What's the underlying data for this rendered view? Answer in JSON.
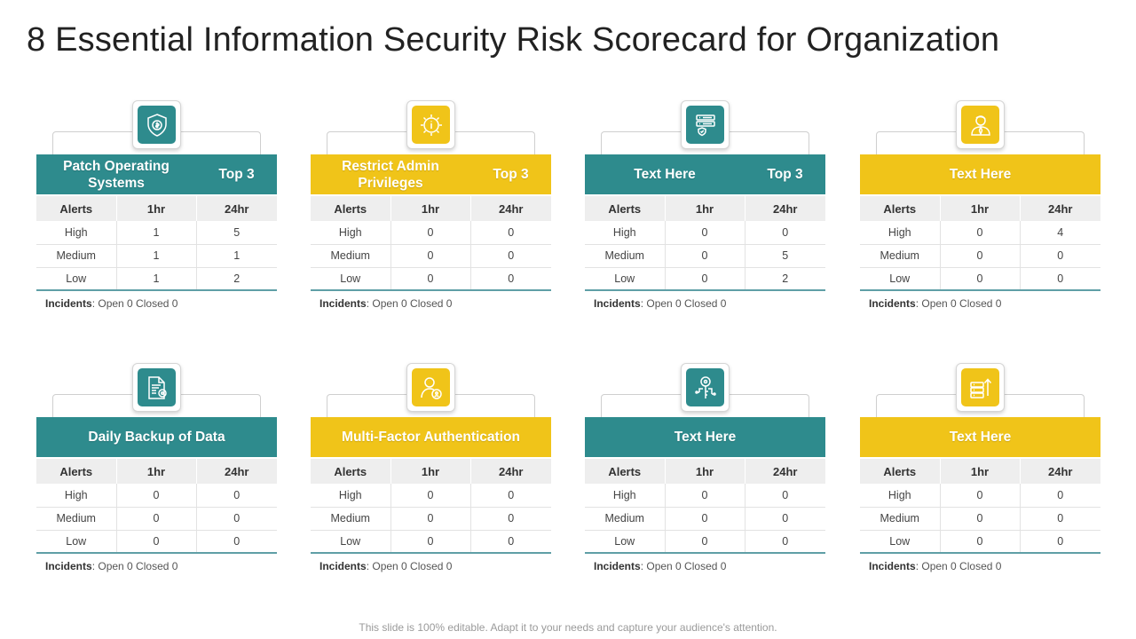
{
  "title": "8 Essential Information Security Risk Scorecard for Organization",
  "columns": [
    "Alerts",
    "1hr",
    "24hr"
  ],
  "incidents_label": "Incidents",
  "cards": [
    {
      "title": "Patch Operating Systems",
      "badge": "Top 3",
      "color": "teal",
      "icon": "shield-dollar-icon",
      "rows": [
        [
          "High",
          "1",
          "5"
        ],
        [
          "Medium",
          "1",
          "1"
        ],
        [
          "Low",
          "1",
          "2"
        ]
      ],
      "incidents": "Open 0 Closed 0"
    },
    {
      "title": "Restrict Admin Privileges",
      "badge": "Top 3",
      "color": "yellow",
      "icon": "gear-info-icon",
      "rows": [
        [
          "High",
          "0",
          "0"
        ],
        [
          "Medium",
          "0",
          "0"
        ],
        [
          "Low",
          "0",
          "0"
        ]
      ],
      "incidents": "Open 0 Closed 0"
    },
    {
      "title": "Text Here",
      "badge": "Top 3",
      "color": "teal",
      "icon": "server-shield-icon",
      "rows": [
        [
          "High",
          "0",
          "0"
        ],
        [
          "Medium",
          "0",
          "5"
        ],
        [
          "Low",
          "0",
          "2"
        ]
      ],
      "incidents": "Open 0 Closed 0"
    },
    {
      "title": "Text Here",
      "badge": "",
      "color": "yellow",
      "icon": "user-icon",
      "rows": [
        [
          "High",
          "0",
          "4"
        ],
        [
          "Medium",
          "0",
          "0"
        ],
        [
          "Low",
          "0",
          "0"
        ]
      ],
      "incidents": "Open 0 Closed 0"
    },
    {
      "title": "Daily Backup of Data",
      "badge": "",
      "color": "teal",
      "icon": "document-settings-icon",
      "rows": [
        [
          "High",
          "0",
          "0"
        ],
        [
          "Medium",
          "0",
          "0"
        ],
        [
          "Low",
          "0",
          "0"
        ]
      ],
      "incidents": "Open 0 Closed 0"
    },
    {
      "title": "Multi-Factor Authentication",
      "badge": "",
      "color": "yellow",
      "icon": "user-lock-icon",
      "rows": [
        [
          "High",
          "0",
          "0"
        ],
        [
          "Medium",
          "0",
          "0"
        ],
        [
          "Low",
          "0",
          "0"
        ]
      ],
      "incidents": "Open 0 Closed 0"
    },
    {
      "title": "Text Here",
      "badge": "",
      "color": "teal",
      "icon": "key-circuit-icon",
      "rows": [
        [
          "High",
          "0",
          "0"
        ],
        [
          "Medium",
          "0",
          "0"
        ],
        [
          "Low",
          "0",
          "0"
        ]
      ],
      "incidents": "Open 0 Closed 0"
    },
    {
      "title": "Text Here",
      "badge": "",
      "color": "yellow",
      "icon": "server-upload-icon",
      "rows": [
        [
          "High",
          "0",
          "0"
        ],
        [
          "Medium",
          "0",
          "0"
        ],
        [
          "Low",
          "0",
          "0"
        ]
      ],
      "incidents": "Open 0 Closed 0"
    }
  ],
  "footer": "This slide is 100% editable. Adapt it to your needs and capture your audience's attention."
}
